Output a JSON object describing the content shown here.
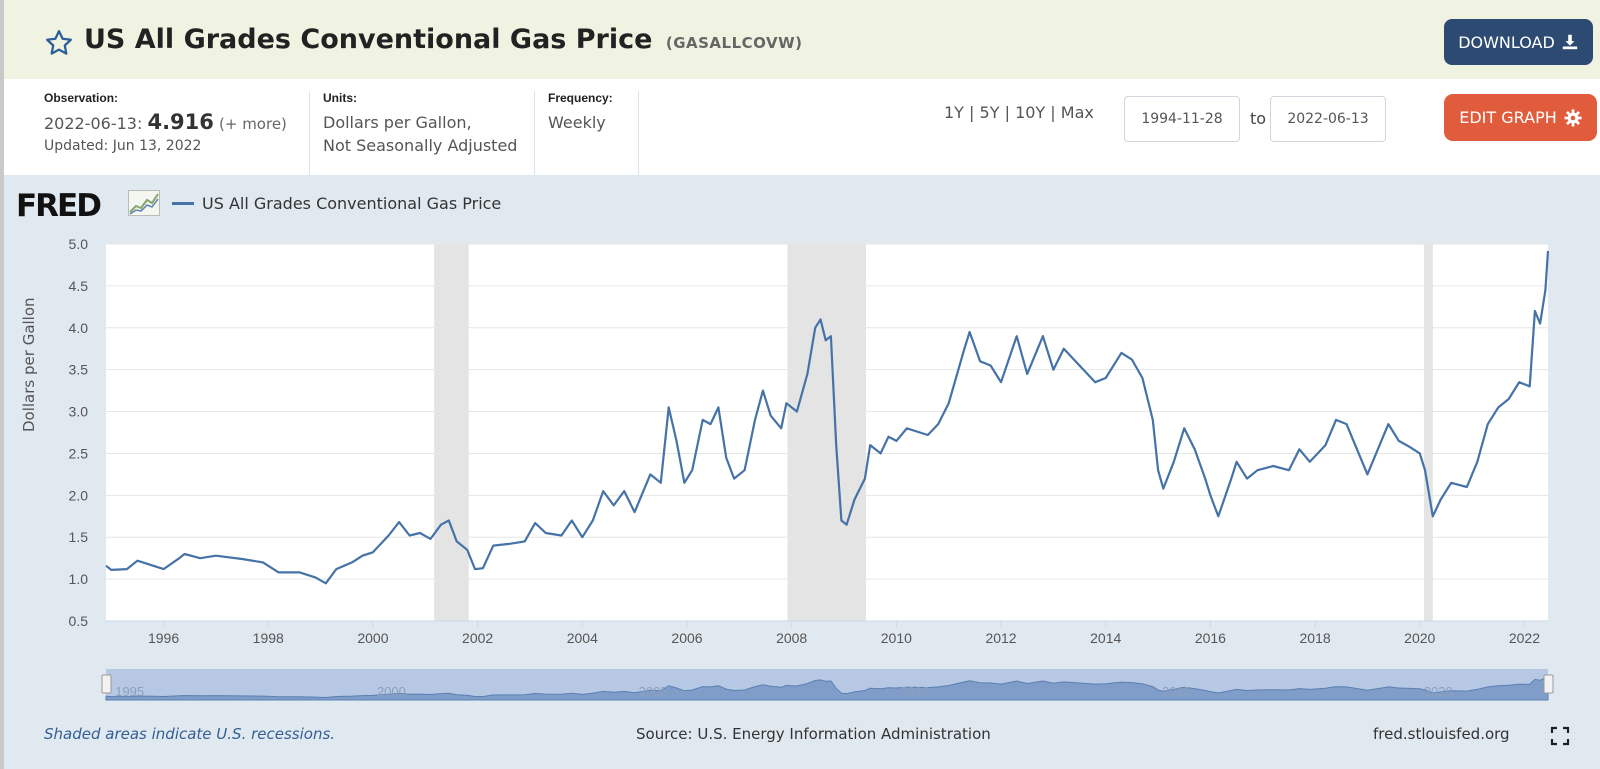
{
  "header": {
    "title": "US All Grades Conventional Gas Price",
    "series_id": "(GASALLCOVW)",
    "download_label": "DOWNLOAD",
    "favorite_icon": "star-icon",
    "download_icon": "download-icon"
  },
  "info": {
    "observation_label": "Observation:",
    "observation_date": "2022-06-13:",
    "observation_value": "4.916",
    "observation_more": "(+ more)",
    "updated": "Updated: Jun 13, 2022",
    "units_label": "Units:",
    "units_line1": "Dollars per Gallon,",
    "units_line2": "Not Seasonally Adjusted",
    "frequency_label": "Frequency:",
    "frequency_value": "Weekly"
  },
  "controls": {
    "range_1y": "1Y",
    "range_5y": "5Y",
    "range_10y": "10Y",
    "range_max": "Max",
    "separator": "|",
    "start_date": "1994-11-28",
    "to_label": "to",
    "end_date": "2022-06-13",
    "edit_label": "EDIT GRAPH",
    "edit_icon": "gear-icon"
  },
  "graph": {
    "logo": "FRED",
    "logo_icon": "mini-chart-icon",
    "legend": "US All Grades Conventional Gas Price",
    "ylabel": "Dollars per Gallon",
    "footer_note": "Shaded areas indicate U.S. recessions.",
    "source": "Source: U.S. Energy Information Administration",
    "site": "fred.stlouisfed.org",
    "fullscreen_icon": "fullscreen-icon"
  },
  "colors": {
    "line": "#4572a7",
    "recession": "#e4e4e4",
    "header_bg": "#f1f3e2",
    "download_btn": "#2d4a72",
    "edit_btn": "#e05c3d",
    "graph_bg": "#e1e9f0"
  },
  "chart_data": {
    "type": "line",
    "title": "",
    "xlabel": "",
    "ylabel": "Dollars per Gallon",
    "ylim": [
      0.5,
      5.0
    ],
    "yticks": [
      0.5,
      1.0,
      1.5,
      2.0,
      2.5,
      3.0,
      3.5,
      4.0,
      4.5,
      5.0
    ],
    "xlim": [
      1994.9,
      2022.45
    ],
    "xticks": [
      1996,
      1998,
      2000,
      2002,
      2004,
      2006,
      2008,
      2010,
      2012,
      2014,
      2016,
      2018,
      2020,
      2022
    ],
    "grid": "horizontal",
    "legend_position": "top-left",
    "recessions": [
      [
        2001.17,
        2001.83
      ],
      [
        2007.92,
        2009.42
      ],
      [
        2020.08,
        2020.25
      ]
    ],
    "navigator_labels": [
      "1995",
      "2000",
      "2005",
      "2010",
      "2015",
      "2020"
    ],
    "series": [
      {
        "name": "US All Grades Conventional Gas Price",
        "points": [
          [
            1994.9,
            1.16
          ],
          [
            1995.0,
            1.11
          ],
          [
            1995.3,
            1.12
          ],
          [
            1995.5,
            1.22
          ],
          [
            1995.8,
            1.16
          ],
          [
            1996.0,
            1.12
          ],
          [
            1996.3,
            1.25
          ],
          [
            1996.4,
            1.3
          ],
          [
            1996.7,
            1.25
          ],
          [
            1997.0,
            1.28
          ],
          [
            1997.5,
            1.24
          ],
          [
            1997.9,
            1.2
          ],
          [
            1998.2,
            1.08
          ],
          [
            1998.6,
            1.08
          ],
          [
            1998.9,
            1.02
          ],
          [
            1999.1,
            0.95
          ],
          [
            1999.3,
            1.12
          ],
          [
            1999.6,
            1.2
          ],
          [
            1999.8,
            1.28
          ],
          [
            2000.0,
            1.32
          ],
          [
            2000.3,
            1.52
          ],
          [
            2000.5,
            1.68
          ],
          [
            2000.7,
            1.52
          ],
          [
            2000.9,
            1.55
          ],
          [
            2001.1,
            1.48
          ],
          [
            2001.3,
            1.65
          ],
          [
            2001.45,
            1.7
          ],
          [
            2001.6,
            1.45
          ],
          [
            2001.8,
            1.35
          ],
          [
            2001.95,
            1.12
          ],
          [
            2002.1,
            1.13
          ],
          [
            2002.3,
            1.4
          ],
          [
            2002.6,
            1.42
          ],
          [
            2002.9,
            1.45
          ],
          [
            2003.1,
            1.67
          ],
          [
            2003.3,
            1.55
          ],
          [
            2003.6,
            1.52
          ],
          [
            2003.8,
            1.7
          ],
          [
            2004.0,
            1.5
          ],
          [
            2004.2,
            1.7
          ],
          [
            2004.4,
            2.05
          ],
          [
            2004.6,
            1.88
          ],
          [
            2004.8,
            2.05
          ],
          [
            2005.0,
            1.8
          ],
          [
            2005.3,
            2.25
          ],
          [
            2005.5,
            2.15
          ],
          [
            2005.65,
            3.05
          ],
          [
            2005.8,
            2.65
          ],
          [
            2005.95,
            2.15
          ],
          [
            2006.1,
            2.3
          ],
          [
            2006.3,
            2.9
          ],
          [
            2006.45,
            2.85
          ],
          [
            2006.6,
            3.05
          ],
          [
            2006.75,
            2.45
          ],
          [
            2006.9,
            2.2
          ],
          [
            2007.1,
            2.3
          ],
          [
            2007.3,
            2.9
          ],
          [
            2007.45,
            3.25
          ],
          [
            2007.6,
            2.95
          ],
          [
            2007.8,
            2.8
          ],
          [
            2007.9,
            3.1
          ],
          [
            2008.1,
            3.0
          ],
          [
            2008.3,
            3.45
          ],
          [
            2008.45,
            4.0
          ],
          [
            2008.55,
            4.1
          ],
          [
            2008.65,
            3.85
          ],
          [
            2008.75,
            3.9
          ],
          [
            2008.85,
            2.6
          ],
          [
            2008.95,
            1.7
          ],
          [
            2009.05,
            1.65
          ],
          [
            2009.2,
            1.95
          ],
          [
            2009.4,
            2.2
          ],
          [
            2009.5,
            2.6
          ],
          [
            2009.7,
            2.5
          ],
          [
            2009.85,
            2.7
          ],
          [
            2010.0,
            2.65
          ],
          [
            2010.2,
            2.8
          ],
          [
            2010.45,
            2.75
          ],
          [
            2010.6,
            2.72
          ],
          [
            2010.8,
            2.85
          ],
          [
            2011.0,
            3.1
          ],
          [
            2011.3,
            3.75
          ],
          [
            2011.4,
            3.95
          ],
          [
            2011.6,
            3.6
          ],
          [
            2011.8,
            3.55
          ],
          [
            2012.0,
            3.35
          ],
          [
            2012.3,
            3.9
          ],
          [
            2012.5,
            3.45
          ],
          [
            2012.7,
            3.75
          ],
          [
            2012.8,
            3.9
          ],
          [
            2013.0,
            3.5
          ],
          [
            2013.2,
            3.75
          ],
          [
            2013.5,
            3.55
          ],
          [
            2013.8,
            3.35
          ],
          [
            2014.0,
            3.4
          ],
          [
            2014.3,
            3.7
          ],
          [
            2014.5,
            3.62
          ],
          [
            2014.7,
            3.4
          ],
          [
            2014.9,
            2.9
          ],
          [
            2015.0,
            2.3
          ],
          [
            2015.1,
            2.08
          ],
          [
            2015.3,
            2.4
          ],
          [
            2015.5,
            2.8
          ],
          [
            2015.7,
            2.55
          ],
          [
            2015.9,
            2.2
          ],
          [
            2016.0,
            2.0
          ],
          [
            2016.15,
            1.75
          ],
          [
            2016.4,
            2.2
          ],
          [
            2016.5,
            2.4
          ],
          [
            2016.7,
            2.2
          ],
          [
            2016.9,
            2.3
          ],
          [
            2017.2,
            2.35
          ],
          [
            2017.5,
            2.3
          ],
          [
            2017.7,
            2.55
          ],
          [
            2017.9,
            2.4
          ],
          [
            2018.2,
            2.6
          ],
          [
            2018.4,
            2.9
          ],
          [
            2018.6,
            2.85
          ],
          [
            2018.9,
            2.4
          ],
          [
            2019.0,
            2.25
          ],
          [
            2019.3,
            2.7
          ],
          [
            2019.4,
            2.85
          ],
          [
            2019.6,
            2.65
          ],
          [
            2019.8,
            2.58
          ],
          [
            2020.0,
            2.5
          ],
          [
            2020.1,
            2.3
          ],
          [
            2020.25,
            1.75
          ],
          [
            2020.4,
            1.95
          ],
          [
            2020.6,
            2.15
          ],
          [
            2020.9,
            2.1
          ],
          [
            2021.1,
            2.4
          ],
          [
            2021.3,
            2.85
          ],
          [
            2021.5,
            3.05
          ],
          [
            2021.7,
            3.15
          ],
          [
            2021.9,
            3.35
          ],
          [
            2022.1,
            3.3
          ],
          [
            2022.2,
            4.2
          ],
          [
            2022.3,
            4.05
          ],
          [
            2022.4,
            4.45
          ],
          [
            2022.45,
            4.916
          ]
        ]
      }
    ]
  }
}
